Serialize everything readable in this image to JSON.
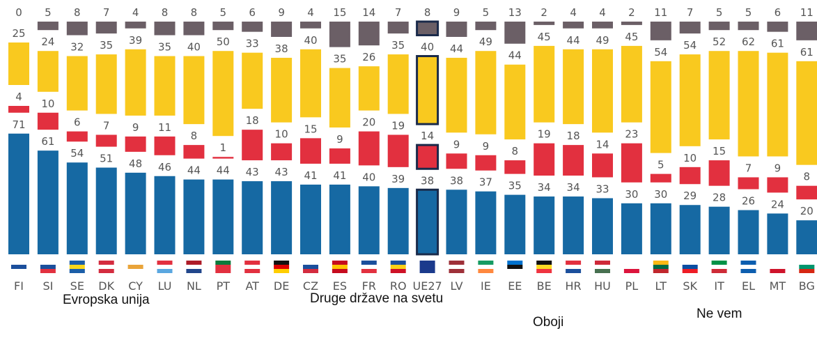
{
  "chart_data": {
    "type": "stacked_bar",
    "categories": [
      "FI",
      "SI",
      "SE",
      "DK",
      "CY",
      "LU",
      "NL",
      "PT",
      "AT",
      "DE",
      "CZ",
      "ES",
      "FR",
      "RO",
      "UE27",
      "LV",
      "IE",
      "EE",
      "BE",
      "HR",
      "HU",
      "PL",
      "LT",
      "SK",
      "IT",
      "EL",
      "MT",
      "BG"
    ],
    "series": [
      {
        "name": "Evropska unija",
        "color": "#1669a3",
        "values": [
          71,
          61,
          54,
          51,
          48,
          46,
          44,
          44,
          43,
          43,
          41,
          41,
          40,
          39,
          38,
          38,
          37,
          35,
          34,
          34,
          33,
          30,
          30,
          29,
          28,
          26,
          24,
          20
        ]
      },
      {
        "name": "Druge države na svetu",
        "color": "#e2303f",
        "values": [
          4,
          10,
          6,
          7,
          9,
          11,
          8,
          1,
          18,
          10,
          15,
          9,
          20,
          19,
          14,
          9,
          9,
          8,
          19,
          18,
          14,
          23,
          5,
          10,
          15,
          7,
          9,
          8
        ]
      },
      {
        "name": "Oboji",
        "color": "#f9c91f",
        "values": [
          25,
          24,
          32,
          35,
          39,
          35,
          40,
          50,
          33,
          38,
          40,
          35,
          26,
          35,
          40,
          44,
          49,
          44,
          45,
          44,
          49,
          45,
          54,
          54,
          52,
          62,
          61,
          61
        ]
      },
      {
        "name": "Ne vem",
        "color": "#6b5f66",
        "values": [
          0,
          5,
          8,
          7,
          4,
          8,
          8,
          5,
          6,
          9,
          4,
          15,
          14,
          7,
          8,
          9,
          5,
          13,
          2,
          4,
          4,
          2,
          11,
          7,
          5,
          5,
          6,
          11
        ]
      }
    ],
    "highlight_category": "UE27"
  }
}
